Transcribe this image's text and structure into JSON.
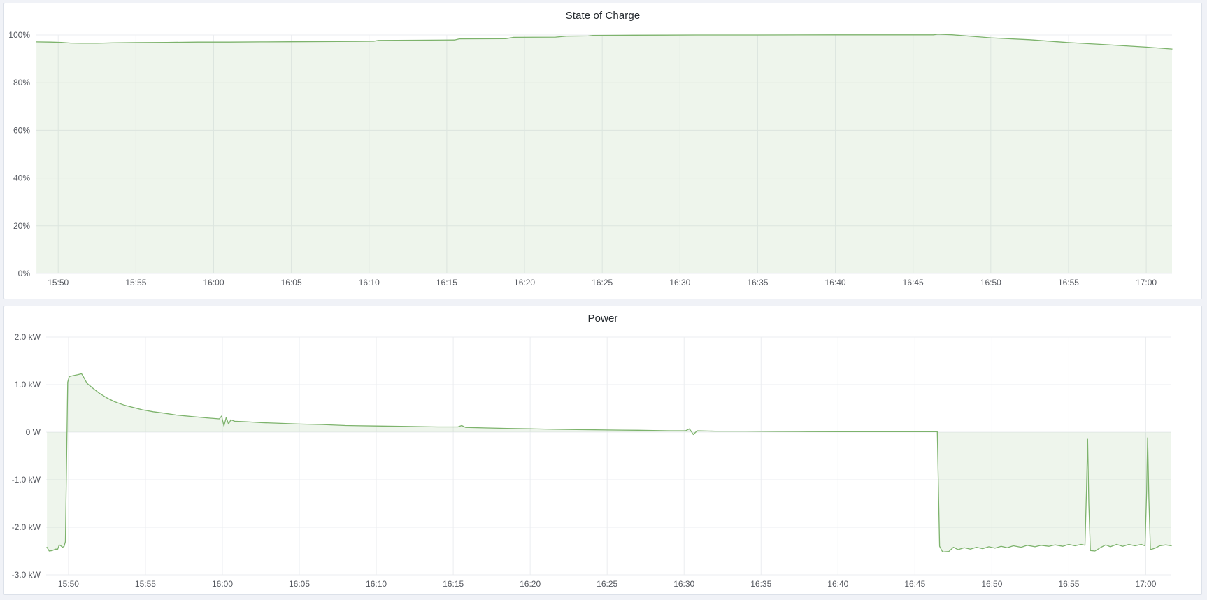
{
  "page": {
    "background_color": "#f0f2f7",
    "panel_background": "#ffffff",
    "panel_border_color": "#dce1e9",
    "title_color": "#24292e",
    "axis_text_color": "#55585f",
    "grid_color": "#ebedf0",
    "series_color": "#7db36c",
    "series_fill_color": "rgba(126,179,109,0.13)"
  },
  "chart_data": [
    {
      "type": "area",
      "title": "State of Charge",
      "xlabel": "",
      "ylabel": "",
      "legend": "none",
      "grid": "on",
      "ylim": [
        0,
        100
      ],
      "x_range_minutes": [
        48.55,
        121.66
      ],
      "x_ticks": [
        {
          "label": "15:50",
          "minute": 50
        },
        {
          "label": "15:55",
          "minute": 55
        },
        {
          "label": "16:00",
          "minute": 60
        },
        {
          "label": "16:05",
          "minute": 65
        },
        {
          "label": "16:10",
          "minute": 70
        },
        {
          "label": "16:15",
          "minute": 75
        },
        {
          "label": "16:20",
          "minute": 80
        },
        {
          "label": "16:25",
          "minute": 85
        },
        {
          "label": "16:30",
          "minute": 90
        },
        {
          "label": "16:35",
          "minute": 95
        },
        {
          "label": "16:40",
          "minute": 100
        },
        {
          "label": "16:45",
          "minute": 105
        },
        {
          "label": "16:50",
          "minute": 110
        },
        {
          "label": "16:55",
          "minute": 115
        },
        {
          "label": "17:00",
          "minute": 120
        }
      ],
      "y_ticks": [
        {
          "label": "100%",
          "value": 100
        },
        {
          "label": "80%",
          "value": 80
        },
        {
          "label": "60%",
          "value": 60
        },
        {
          "label": "40%",
          "value": 40
        },
        {
          "label": "20%",
          "value": 20
        },
        {
          "label": "0%",
          "value": 0
        }
      ],
      "series": [
        {
          "name": "State of Charge",
          "unit": "%",
          "points": [
            [
              48.6,
              97.1
            ],
            [
              49.5,
              97.0
            ],
            [
              50.2,
              96.9
            ],
            [
              50.8,
              96.6
            ],
            [
              51.5,
              96.5
            ],
            [
              52.5,
              96.5
            ],
            [
              53.5,
              96.7
            ],
            [
              55,
              96.8
            ],
            [
              57,
              96.9
            ],
            [
              59,
              97.0
            ],
            [
              61,
              97.0
            ],
            [
              63,
              97.1
            ],
            [
              65,
              97.15
            ],
            [
              67,
              97.2
            ],
            [
              69,
              97.3
            ],
            [
              70.3,
              97.35
            ],
            [
              70.6,
              97.7
            ],
            [
              73,
              97.8
            ],
            [
              75.5,
              97.9
            ],
            [
              75.8,
              98.35
            ],
            [
              78.8,
              98.45
            ],
            [
              79.3,
              99.0
            ],
            [
              82,
              99.1
            ],
            [
              82.7,
              99.5
            ],
            [
              84.1,
              99.6
            ],
            [
              84.4,
              99.8
            ],
            [
              87,
              99.9
            ],
            [
              89,
              99.95
            ],
            [
              91,
              100.0
            ],
            [
              95,
              100.0
            ],
            [
              100,
              100.05
            ],
            [
              105,
              100.05
            ],
            [
              106.3,
              100.05
            ],
            [
              106.6,
              100.35
            ],
            [
              107.5,
              100.1
            ],
            [
              110,
              98.8
            ],
            [
              112.5,
              98.0
            ],
            [
              115,
              96.8
            ],
            [
              117.5,
              95.9
            ],
            [
              120,
              94.9
            ],
            [
              121.66,
              94.1
            ]
          ]
        }
      ]
    },
    {
      "type": "area",
      "title": "Power",
      "xlabel": "",
      "ylabel": "",
      "legend": "none",
      "grid": "on",
      "ylim": [
        -3,
        2
      ],
      "x_range_minutes": [
        48.55,
        121.66
      ],
      "x_ticks": [
        {
          "label": "15:50",
          "minute": 50
        },
        {
          "label": "15:55",
          "minute": 55
        },
        {
          "label": "16:00",
          "minute": 60
        },
        {
          "label": "16:05",
          "minute": 65
        },
        {
          "label": "16:10",
          "minute": 70
        },
        {
          "label": "16:15",
          "minute": 75
        },
        {
          "label": "16:20",
          "minute": 80
        },
        {
          "label": "16:25",
          "minute": 85
        },
        {
          "label": "16:30",
          "minute": 90
        },
        {
          "label": "16:35",
          "minute": 95
        },
        {
          "label": "16:40",
          "minute": 100
        },
        {
          "label": "16:45",
          "minute": 105
        },
        {
          "label": "16:50",
          "minute": 110
        },
        {
          "label": "16:55",
          "minute": 115
        },
        {
          "label": "17:00",
          "minute": 120
        }
      ],
      "y_ticks": [
        {
          "label": "2.0 kW",
          "value": 2
        },
        {
          "label": "1.0 kW",
          "value": 1
        },
        {
          "label": "0 W",
          "value": 0
        },
        {
          "label": "-1.0 kW",
          "value": -1
        },
        {
          "label": "-2.0 kW",
          "value": -2
        },
        {
          "label": "-3.0 kW",
          "value": -3
        }
      ],
      "series": [
        {
          "name": "Power",
          "unit": "kW",
          "points": [
            [
              48.6,
              -2.42
            ],
            [
              48.75,
              -2.5
            ],
            [
              48.95,
              -2.49
            ],
            [
              49.15,
              -2.46
            ],
            [
              49.3,
              -2.46
            ],
            [
              49.4,
              -2.37
            ],
            [
              49.5,
              -2.39
            ],
            [
              49.62,
              -2.42
            ],
            [
              49.72,
              -2.4
            ],
            [
              49.8,
              -2.3
            ],
            [
              49.88,
              -0.5
            ],
            [
              49.95,
              1.05
            ],
            [
              50.05,
              1.17
            ],
            [
              50.3,
              1.19
            ],
            [
              50.6,
              1.21
            ],
            [
              50.85,
              1.23
            ],
            [
              50.95,
              1.18
            ],
            [
              51.2,
              1.03
            ],
            [
              51.6,
              0.92
            ],
            [
              52.0,
              0.82
            ],
            [
              52.5,
              0.72
            ],
            [
              53.0,
              0.64
            ],
            [
              53.6,
              0.57
            ],
            [
              54.2,
              0.52
            ],
            [
              54.8,
              0.47
            ],
            [
              55.5,
              0.43
            ],
            [
              56.2,
              0.4
            ],
            [
              57,
              0.36
            ],
            [
              58,
              0.33
            ],
            [
              59,
              0.3
            ],
            [
              59.8,
              0.28
            ],
            [
              59.95,
              0.34
            ],
            [
              60.1,
              0.13
            ],
            [
              60.25,
              0.31
            ],
            [
              60.4,
              0.17
            ],
            [
              60.55,
              0.26
            ],
            [
              60.8,
              0.23
            ],
            [
              61.5,
              0.22
            ],
            [
              62.5,
              0.2
            ],
            [
              63.5,
              0.19
            ],
            [
              65,
              0.17
            ],
            [
              66.5,
              0.16
            ],
            [
              68,
              0.14
            ],
            [
              70,
              0.13
            ],
            [
              72,
              0.12
            ],
            [
              74,
              0.11
            ],
            [
              75.3,
              0.11
            ],
            [
              75.55,
              0.14
            ],
            [
              75.8,
              0.1
            ],
            [
              77,
              0.09
            ],
            [
              78.5,
              0.08
            ],
            [
              80,
              0.07
            ],
            [
              81.5,
              0.06
            ],
            [
              83,
              0.055
            ],
            [
              85,
              0.045
            ],
            [
              87,
              0.04
            ],
            [
              89,
              0.03
            ],
            [
              90.1,
              0.03
            ],
            [
              90.35,
              0.07
            ],
            [
              90.6,
              -0.05
            ],
            [
              90.85,
              0.03
            ],
            [
              92,
              0.02
            ],
            [
              94,
              0.02
            ],
            [
              96,
              0.015
            ],
            [
              98,
              0.012
            ],
            [
              100,
              0.01
            ],
            [
              102,
              0.01
            ],
            [
              104,
              0.01
            ],
            [
              106,
              0.01
            ],
            [
              106.45,
              0.01
            ],
            [
              106.6,
              -2.4
            ],
            [
              106.8,
              -2.52
            ],
            [
              107.2,
              -2.51
            ],
            [
              107.5,
              -2.42
            ],
            [
              107.8,
              -2.47
            ],
            [
              108.2,
              -2.43
            ],
            [
              108.6,
              -2.46
            ],
            [
              109,
              -2.42
            ],
            [
              109.4,
              -2.45
            ],
            [
              109.8,
              -2.41
            ],
            [
              110.2,
              -2.44
            ],
            [
              110.6,
              -2.4
            ],
            [
              111,
              -2.43
            ],
            [
              111.4,
              -2.39
            ],
            [
              111.9,
              -2.42
            ],
            [
              112.3,
              -2.38
            ],
            [
              112.8,
              -2.41
            ],
            [
              113.2,
              -2.38
            ],
            [
              113.7,
              -2.4
            ],
            [
              114.1,
              -2.37
            ],
            [
              114.6,
              -2.4
            ],
            [
              115,
              -2.36
            ],
            [
              115.4,
              -2.39
            ],
            [
              115.8,
              -2.36
            ],
            [
              116.05,
              -2.38
            ],
            [
              116.15,
              -1.2
            ],
            [
              116.22,
              -0.15
            ],
            [
              116.3,
              -1.5
            ],
            [
              116.4,
              -2.49
            ],
            [
              116.7,
              -2.5
            ],
            [
              117.1,
              -2.42
            ],
            [
              117.4,
              -2.37
            ],
            [
              117.7,
              -2.41
            ],
            [
              118.1,
              -2.36
            ],
            [
              118.5,
              -2.4
            ],
            [
              118.9,
              -2.36
            ],
            [
              119.3,
              -2.39
            ],
            [
              119.7,
              -2.36
            ],
            [
              119.95,
              -2.39
            ],
            [
              120.05,
              -1.3
            ],
            [
              120.12,
              -0.12
            ],
            [
              120.2,
              -1.4
            ],
            [
              120.3,
              -2.47
            ],
            [
              120.6,
              -2.44
            ],
            [
              120.9,
              -2.39
            ],
            [
              121.3,
              -2.37
            ],
            [
              121.66,
              -2.39
            ]
          ]
        }
      ]
    }
  ]
}
